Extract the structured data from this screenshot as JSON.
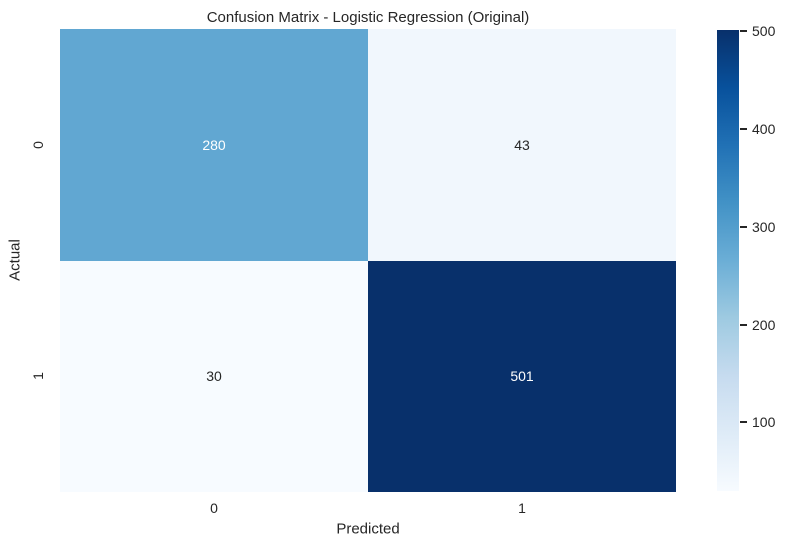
{
  "figure": {
    "background": "#ffffff",
    "text_color": "#262626"
  },
  "chart_data": {
    "type": "heatmap",
    "title": "Confusion Matrix - Logistic Regression (Original)",
    "xlabel": "Predicted",
    "ylabel": "Actual",
    "x_tick_labels": [
      "0",
      "1"
    ],
    "y_tick_labels": [
      "0",
      "1"
    ],
    "matrix": [
      [
        280,
        43
      ],
      [
        30,
        501
      ]
    ],
    "colormap": "Blues",
    "vmin": 30,
    "vmax": 501,
    "grid": false,
    "legend_position": "right-colorbar",
    "colorbar_ticks": [
      "100",
      "200",
      "300",
      "400",
      "500"
    ],
    "colorbar_tick_values": [
      100,
      200,
      300,
      400,
      500
    ],
    "cell_colors": [
      [
        "#61a7d2",
        "#f1f7fd"
      ],
      [
        "#f7fbff",
        "#08306b"
      ]
    ],
    "cell_text_colors": [
      [
        "#ffffff",
        "#262626"
      ],
      [
        "#262626",
        "#ffffff"
      ]
    ],
    "colormap_stops": [
      {
        "pos": 0.0,
        "color": "#f7fbff"
      },
      {
        "pos": 0.125,
        "color": "#deebf7"
      },
      {
        "pos": 0.25,
        "color": "#c6dbef"
      },
      {
        "pos": 0.375,
        "color": "#9ecae1"
      },
      {
        "pos": 0.5,
        "color": "#6baed6"
      },
      {
        "pos": 0.625,
        "color": "#4292c6"
      },
      {
        "pos": 0.75,
        "color": "#2171b5"
      },
      {
        "pos": 0.875,
        "color": "#08519c"
      },
      {
        "pos": 1.0,
        "color": "#08306b"
      }
    ]
  }
}
